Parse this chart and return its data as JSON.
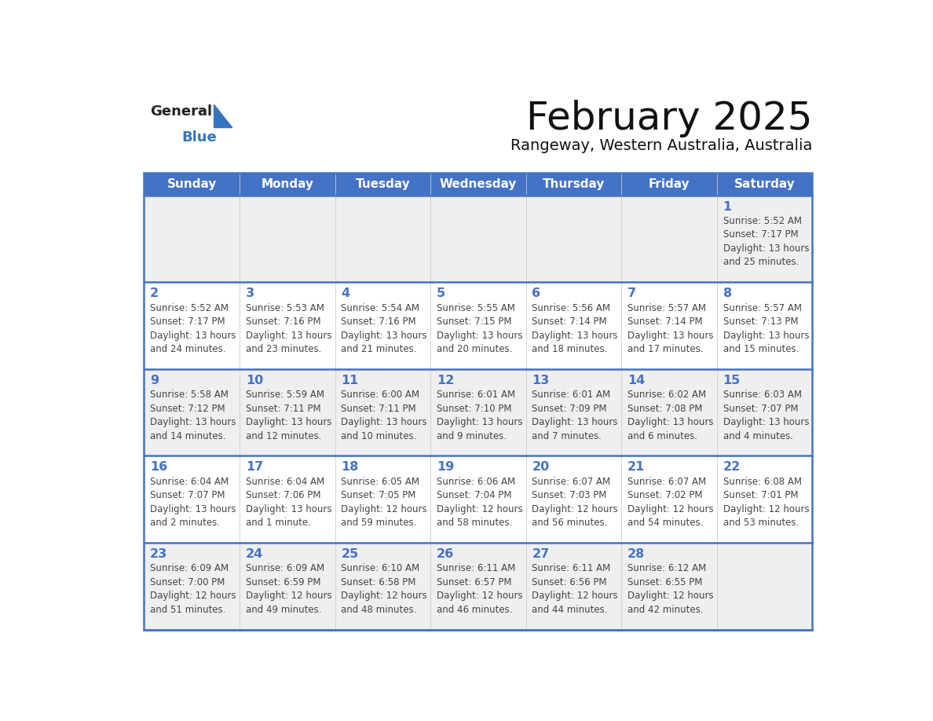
{
  "title": "February 2025",
  "subtitle": "Rangeway, Western Australia, Australia",
  "header_bg": "#4472C4",
  "header_text_color": "#FFFFFF",
  "day_names": [
    "Sunday",
    "Monday",
    "Tuesday",
    "Wednesday",
    "Thursday",
    "Friday",
    "Saturday"
  ],
  "cell_bg_shaded": "#EFEFEF",
  "cell_bg_white": "#FFFFFF",
  "cell_border_color": "#4472C4",
  "cell_divider_color": "#CCCCCC",
  "date_text_color": "#4472C4",
  "info_text_color": "#444444",
  "logo_general_color": "#222222",
  "logo_blue_color": "#3575C0",
  "logo_triangle_color": "#3575C0",
  "title_color": "#111111",
  "subtitle_color": "#111111",
  "calendar_data": [
    [
      null,
      null,
      null,
      null,
      null,
      null,
      {
        "day": 1,
        "sunrise": "5:52 AM",
        "sunset": "7:17 PM",
        "daylight": "13 hours and 25 minutes"
      }
    ],
    [
      {
        "day": 2,
        "sunrise": "5:52 AM",
        "sunset": "7:17 PM",
        "daylight": "13 hours and 24 minutes"
      },
      {
        "day": 3,
        "sunrise": "5:53 AM",
        "sunset": "7:16 PM",
        "daylight": "13 hours and 23 minutes"
      },
      {
        "day": 4,
        "sunrise": "5:54 AM",
        "sunset": "7:16 PM",
        "daylight": "13 hours and 21 minutes"
      },
      {
        "day": 5,
        "sunrise": "5:55 AM",
        "sunset": "7:15 PM",
        "daylight": "13 hours and 20 minutes"
      },
      {
        "day": 6,
        "sunrise": "5:56 AM",
        "sunset": "7:14 PM",
        "daylight": "13 hours and 18 minutes"
      },
      {
        "day": 7,
        "sunrise": "5:57 AM",
        "sunset": "7:14 PM",
        "daylight": "13 hours and 17 minutes"
      },
      {
        "day": 8,
        "sunrise": "5:57 AM",
        "sunset": "7:13 PM",
        "daylight": "13 hours and 15 minutes"
      }
    ],
    [
      {
        "day": 9,
        "sunrise": "5:58 AM",
        "sunset": "7:12 PM",
        "daylight": "13 hours and 14 minutes"
      },
      {
        "day": 10,
        "sunrise": "5:59 AM",
        "sunset": "7:11 PM",
        "daylight": "13 hours and 12 minutes"
      },
      {
        "day": 11,
        "sunrise": "6:00 AM",
        "sunset": "7:11 PM",
        "daylight": "13 hours and 10 minutes"
      },
      {
        "day": 12,
        "sunrise": "6:01 AM",
        "sunset": "7:10 PM",
        "daylight": "13 hours and 9 minutes"
      },
      {
        "day": 13,
        "sunrise": "6:01 AM",
        "sunset": "7:09 PM",
        "daylight": "13 hours and 7 minutes"
      },
      {
        "day": 14,
        "sunrise": "6:02 AM",
        "sunset": "7:08 PM",
        "daylight": "13 hours and 6 minutes"
      },
      {
        "day": 15,
        "sunrise": "6:03 AM",
        "sunset": "7:07 PM",
        "daylight": "13 hours and 4 minutes"
      }
    ],
    [
      {
        "day": 16,
        "sunrise": "6:04 AM",
        "sunset": "7:07 PM",
        "daylight": "13 hours and 2 minutes"
      },
      {
        "day": 17,
        "sunrise": "6:04 AM",
        "sunset": "7:06 PM",
        "daylight": "13 hours and 1 minute"
      },
      {
        "day": 18,
        "sunrise": "6:05 AM",
        "sunset": "7:05 PM",
        "daylight": "12 hours and 59 minutes"
      },
      {
        "day": 19,
        "sunrise": "6:06 AM",
        "sunset": "7:04 PM",
        "daylight": "12 hours and 58 minutes"
      },
      {
        "day": 20,
        "sunrise": "6:07 AM",
        "sunset": "7:03 PM",
        "daylight": "12 hours and 56 minutes"
      },
      {
        "day": 21,
        "sunrise": "6:07 AM",
        "sunset": "7:02 PM",
        "daylight": "12 hours and 54 minutes"
      },
      {
        "day": 22,
        "sunrise": "6:08 AM",
        "sunset": "7:01 PM",
        "daylight": "12 hours and 53 minutes"
      }
    ],
    [
      {
        "day": 23,
        "sunrise": "6:09 AM",
        "sunset": "7:00 PM",
        "daylight": "12 hours and 51 minutes"
      },
      {
        "day": 24,
        "sunrise": "6:09 AM",
        "sunset": "6:59 PM",
        "daylight": "12 hours and 49 minutes"
      },
      {
        "day": 25,
        "sunrise": "6:10 AM",
        "sunset": "6:58 PM",
        "daylight": "12 hours and 48 minutes"
      },
      {
        "day": 26,
        "sunrise": "6:11 AM",
        "sunset": "6:57 PM",
        "daylight": "12 hours and 46 minutes"
      },
      {
        "day": 27,
        "sunrise": "6:11 AM",
        "sunset": "6:56 PM",
        "daylight": "12 hours and 44 minutes"
      },
      {
        "day": 28,
        "sunrise": "6:12 AM",
        "sunset": "6:55 PM",
        "daylight": "12 hours and 42 minutes"
      },
      null
    ]
  ]
}
